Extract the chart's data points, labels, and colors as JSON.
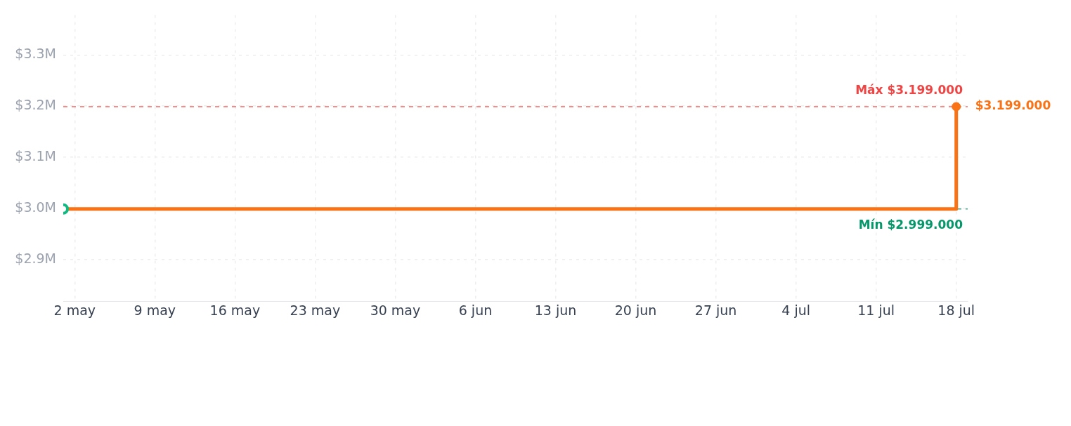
{
  "chart_data": {
    "type": "step",
    "x": [
      "--05-01",
      "--07-18"
    ],
    "series": [
      {
        "color": "#f97316",
        "colors": [
          "#10b981",
          "#f97316"
        ],
        "values": [
          2999000,
          3199000
        ],
        "value_labels": [
          null,
          "$3.199.000"
        ]
      }
    ],
    "xlim": [
      "--05-01",
      "--07-19"
    ],
    "xticks": [
      {
        "value": "--05-02",
        "label": "2 may"
      },
      {
        "value": "--05-09",
        "label": "9 may"
      },
      {
        "value": "--05-16",
        "label": "16 may"
      },
      {
        "value": "--05-23",
        "label": "23 may"
      },
      {
        "value": "--05-30",
        "label": "30 may"
      },
      {
        "value": "--06-06",
        "label": "6 jun"
      },
      {
        "value": "--06-13",
        "label": "13 jun"
      },
      {
        "value": "--06-20",
        "label": "20 jun"
      },
      {
        "value": "--06-27",
        "label": "27 jun"
      },
      {
        "value": "--07-04",
        "label": "4 jul"
      },
      {
        "value": "--07-11",
        "label": "11 jul"
      },
      {
        "value": "--07-18",
        "label": "18 jul"
      }
    ],
    "ylim": [
      2819000,
      3378000
    ],
    "yticks": [
      {
        "value": 2900000,
        "label": "$2.9M"
      },
      {
        "value": 3000000,
        "label": "$3.0M"
      },
      {
        "value": 3100000,
        "label": "$3.1M"
      },
      {
        "value": 3200000,
        "label": "$3.2M"
      },
      {
        "value": 3300000,
        "label": "$3.3M"
      }
    ],
    "ref_lines": [
      {
        "axis": "y",
        "value": 3199000,
        "label": "Máx $3.199.000",
        "color": "#ef4444",
        "line_style": "dashed"
      },
      {
        "axis": "y",
        "value": 2999000,
        "label": "Mín $2.999.000",
        "color": "#059669",
        "line_style": "dashed"
      }
    ],
    "grid": true,
    "marker": "circle",
    "line_style": "solid"
  }
}
